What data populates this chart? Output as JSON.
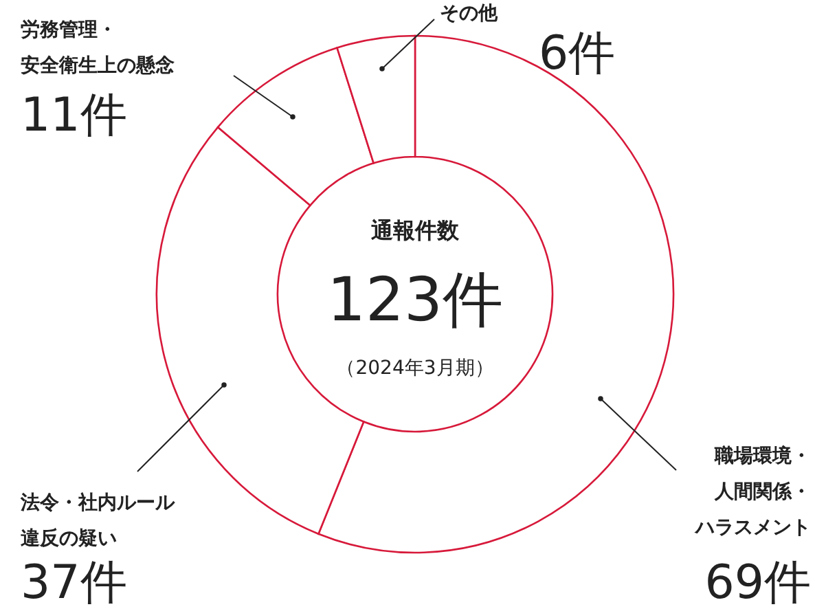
{
  "chart_data": {
    "type": "donut",
    "title": "通報件数",
    "categories": [
      "職場環境・人間関係・ハラスメント",
      "法令・社内ルール違反の疑い",
      "労務管理・安全衛生上の懸念",
      "その他"
    ],
    "values": [
      69,
      37,
      11,
      6
    ],
    "colors": [
      "#ffffff",
      "#ffffff",
      "#ffffff",
      "#ffffff"
    ],
    "value_labels": [
      "69件",
      "37件",
      "11件",
      "6件"
    ],
    "annotations": [
      "123件",
      "（2024年3月期）"
    ]
  }
}
